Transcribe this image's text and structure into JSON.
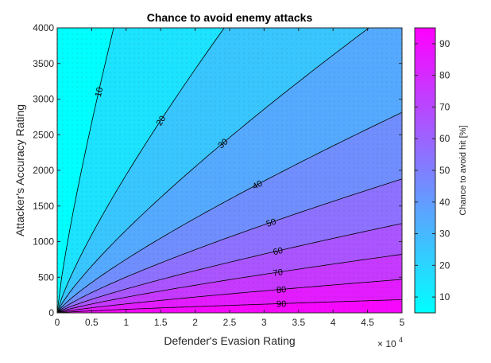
{
  "chart_data": {
    "type": "contour",
    "title": "Chance to avoid enemy attacks",
    "xlabel": "Defender's Evasion Rating",
    "ylabel": "Attacker's Accuracy Rating",
    "x_ticks": [
      "0",
      "0.5",
      "1",
      "1.5",
      "2",
      "2.5",
      "3",
      "3.5",
      "4",
      "4.5",
      "5"
    ],
    "x_multiplier_base": "× 10",
    "x_multiplier_exp": "4",
    "xlim": [
      0,
      50000
    ],
    "y_ticks": [
      "0",
      "500",
      "1000",
      "1500",
      "2000",
      "2500",
      "3000",
      "3500",
      "4000"
    ],
    "ylim": [
      0,
      4000
    ],
    "grid": "dotted minor",
    "colorbar": {
      "label": "Chance to avoid hit [%]",
      "range": [
        5,
        95
      ],
      "ticks": [
        "10",
        "20",
        "30",
        "40",
        "50",
        "60",
        "70",
        "80",
        "90"
      ],
      "colormap": "cool",
      "color_low": "#00ffff",
      "color_high": "#ff00ff"
    },
    "contour_levels": [
      {
        "level": 10,
        "label": "10",
        "label_at": [
          6000,
          3100
        ]
      },
      {
        "level": 20,
        "label": "20",
        "label_at": [
          15000,
          2700
        ]
      },
      {
        "level": 30,
        "label": "30",
        "label_at": [
          24000,
          2380
        ]
      },
      {
        "level": 40,
        "label": "40",
        "label_at": [
          29000,
          1800
        ]
      },
      {
        "level": 50,
        "label": "50",
        "label_at": [
          31000,
          1270
        ]
      },
      {
        "level": 60,
        "label": "60",
        "label_at": [
          32000,
          870
        ]
      },
      {
        "level": 70,
        "label": "70",
        "label_at": [
          32000,
          570
        ]
      },
      {
        "level": 80,
        "label": "80",
        "label_at": [
          32500,
          330
        ]
      },
      {
        "level": 90,
        "label": "90",
        "label_at": [
          32500,
          130
        ]
      }
    ]
  }
}
